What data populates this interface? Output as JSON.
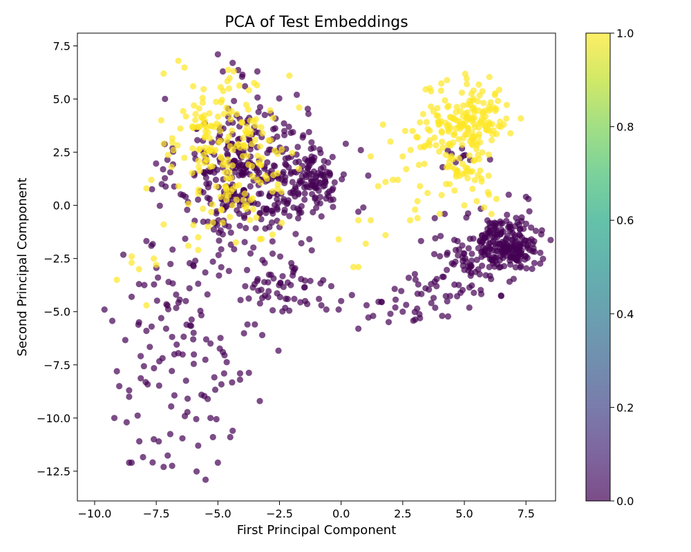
{
  "chart_data": {
    "type": "scatter",
    "title": "PCA of Test Embeddings",
    "xlabel": "First Principal Component",
    "ylabel": "Second Principal Component",
    "xlim": [
      -10.7,
      8.7
    ],
    "ylim": [
      -13.9,
      8.1
    ],
    "xticks": [
      -10.0,
      -7.5,
      -5.0,
      -2.5,
      0.0,
      2.5,
      5.0,
      7.5
    ],
    "yticks": [
      -12.5,
      -10.0,
      -7.5,
      -5.0,
      -2.5,
      0.0,
      2.5,
      5.0,
      7.5
    ],
    "xtick_labels": [
      "−10.0",
      "−7.5",
      "−5.0",
      "−2.5",
      "0.0",
      "2.5",
      "5.0",
      "7.5"
    ],
    "ytick_labels": [
      "−12.5",
      "−10.0",
      "−7.5",
      "−5.0",
      "−2.5",
      "0.0",
      "2.5",
      "5.0",
      "7.5"
    ],
    "grid": false,
    "marker_alpha": 0.7,
    "colorbar": {
      "colormap": "viridis",
      "range": [
        0.0,
        1.0
      ],
      "ticks": [
        0.0,
        0.2,
        0.4,
        0.6,
        0.8,
        1.0
      ],
      "tick_labels": [
        "0.0",
        "0.2",
        "0.4",
        "0.6",
        "0.8",
        "1.0"
      ]
    },
    "colors": {
      "class_0": "#440154",
      "class_1": "#fde725"
    },
    "series": [
      {
        "value": 0,
        "clusters": [
          {
            "center": [
              -4.0,
              1.5
            ],
            "spread": [
              1.3,
              1.8
            ],
            "count": 330
          },
          {
            "center": [
              -1.2,
              1.2
            ],
            "spread": [
              0.7,
              0.8
            ],
            "count": 120
          },
          {
            "center": [
              -2.5,
              -3.5
            ],
            "spread": [
              1.0,
              0.8
            ],
            "count": 60
          },
          {
            "center": [
              -6.5,
              -6.5
            ],
            "spread": [
              1.5,
              2.8
            ],
            "count": 95
          },
          {
            "center": [
              6.8,
              -1.8
            ],
            "spread": [
              0.6,
              0.6
            ],
            "count": 190
          },
          {
            "center": [
              5.3,
              -2.7
            ],
            "spread": [
              1.0,
              0.9
            ],
            "count": 90
          },
          {
            "center": [
              3.0,
              -4.3
            ],
            "spread": [
              1.0,
              0.6
            ],
            "count": 30
          },
          {
            "center": [
              5.0,
              2.2
            ],
            "spread": [
              0.4,
              0.3
            ],
            "count": 10
          }
        ],
        "points": [
          [
            -9.6,
            -4.9
          ],
          [
            -9.2,
            -10.0
          ],
          [
            -8.7,
            -10.2
          ],
          [
            -8.5,
            -12.1
          ],
          [
            -8.6,
            -12.1
          ],
          [
            -7.2,
            -12.3
          ],
          [
            -5.5,
            -12.9
          ],
          [
            -5.0,
            -12.1
          ],
          [
            -5.8,
            -11.3
          ],
          [
            -5.2,
            -10.9
          ],
          [
            -4.4,
            -10.6
          ],
          [
            -7.6,
            -11.0
          ],
          [
            -7.4,
            -11.1
          ],
          [
            -5.3,
            -10.0
          ],
          [
            -4.5,
            -10.9
          ],
          [
            -3.3,
            -9.2
          ],
          [
            -9.0,
            -8.5
          ],
          [
            -9.1,
            -7.8
          ],
          [
            -8.6,
            -9.0
          ],
          [
            -8.6,
            -8.7
          ],
          [
            -4.1,
            -8.2
          ],
          [
            -4.1,
            -7.9
          ],
          [
            -4.8,
            -6.9
          ],
          [
            -5.3,
            -6.5
          ],
          [
            -3.5,
            -5.6
          ],
          [
            -3.8,
            -5.6
          ],
          [
            -3.2,
            -6.1
          ],
          [
            -0.1,
            -4.9
          ],
          [
            -0.8,
            -4.7
          ],
          [
            0.7,
            -5.8
          ],
          [
            -1.9,
            -4.4
          ],
          [
            0.0,
            -4.5
          ],
          [
            -0.4,
            -3.8
          ],
          [
            6.8,
            0.5
          ],
          [
            7.5,
            0.4
          ],
          [
            7.6,
            0.3
          ],
          [
            7.9,
            -1.2
          ],
          [
            2.2,
            -4.8
          ],
          [
            2.5,
            -5.0
          ],
          [
            3.2,
            -5.3
          ],
          [
            4.1,
            -5.2
          ],
          [
            1.3,
            -5.2
          ],
          [
            3.8,
            -0.6
          ],
          [
            4.2,
            -0.4
          ],
          [
            2.0,
            -5.1
          ],
          [
            -7.7,
            -1.9
          ],
          [
            -8.5,
            -4.3
          ],
          [
            -8.2,
            -3.7
          ],
          [
            -7.0,
            -3.6
          ],
          [
            -7.9,
            -5.9
          ],
          [
            -8.2,
            -5.5
          ],
          [
            -6.3,
            -4.5
          ],
          [
            -6.0,
            -6.3
          ],
          [
            -7.3,
            -5.3
          ],
          [
            -7.1,
            -5.8
          ],
          [
            -5.0,
            7.1
          ],
          [
            -4.8,
            6.3
          ],
          [
            -4.4,
            6.7
          ],
          [
            -3.4,
            6.3
          ],
          [
            -3.9,
            5.6
          ],
          [
            -1.8,
            5.2
          ],
          [
            -2.3,
            3.3
          ],
          [
            1.1,
            1.4
          ],
          [
            0.9,
            -0.1
          ],
          [
            0.7,
            -0.3
          ],
          [
            0.8,
            2.6
          ],
          [
            -0.6,
            -4.9
          ],
          [
            -0.9,
            -4.4
          ]
        ]
      },
      {
        "value": 1,
        "clusters": [
          {
            "center": [
              -5.2,
              3.3
            ],
            "spread": [
              0.9,
              1.3
            ],
            "count": 100
          },
          {
            "center": [
              -3.8,
              2.5
            ],
            "spread": [
              1.0,
              1.5
            ],
            "count": 60
          },
          {
            "center": [
              -4.2,
              0.3
            ],
            "spread": [
              0.9,
              0.9
            ],
            "count": 40
          },
          {
            "center": [
              5.2,
              4.1
            ],
            "spread": [
              0.8,
              0.8
            ],
            "count": 150
          },
          {
            "center": [
              5.1,
              1.7
            ],
            "spread": [
              0.6,
              0.6
            ],
            "count": 40
          },
          {
            "center": [
              3.8,
              3.0
            ],
            "spread": [
              0.6,
              0.8
            ],
            "count": 25
          }
        ],
        "points": [
          [
            -9.1,
            -3.5
          ],
          [
            -8.5,
            -2.4
          ],
          [
            -8.5,
            -2.7
          ],
          [
            -8.2,
            -3.0
          ],
          [
            -7.9,
            -4.7
          ],
          [
            -7.6,
            -2.5
          ],
          [
            -7.5,
            -2.8
          ],
          [
            -7.9,
            0.8
          ],
          [
            -7.7,
            1.2
          ],
          [
            -7.3,
            4.0
          ],
          [
            -7.2,
            6.2
          ],
          [
            -6.6,
            6.8
          ],
          [
            -6.0,
            5.6
          ],
          [
            -2.1,
            6.1
          ],
          [
            -1.7,
            4.6
          ],
          [
            0.5,
            -2.9
          ],
          [
            0.7,
            -2.9
          ],
          [
            1.0,
            -1.8
          ],
          [
            0.7,
            -0.7
          ],
          [
            1.2,
            -0.7
          ],
          [
            1.2,
            2.3
          ],
          [
            1.5,
            0.9
          ],
          [
            1.8,
            1.1
          ],
          [
            1.7,
            3.8
          ],
          [
            2.0,
            3.0
          ],
          [
            2.1,
            1.2
          ],
          [
            2.3,
            1.2
          ],
          [
            2.5,
            2.3
          ],
          [
            2.6,
            3.5
          ],
          [
            2.8,
            -0.7
          ],
          [
            3.0,
            -0.2
          ],
          [
            3.1,
            0.2
          ],
          [
            3.2,
            0.9
          ],
          [
            3.1,
            -0.6
          ],
          [
            2.9,
            3.5
          ],
          [
            3.2,
            3.9
          ],
          [
            3.4,
            2.8
          ],
          [
            1.8,
            -1.4
          ],
          [
            -0.1,
            -1.6
          ],
          [
            -6.8,
            2.6
          ],
          [
            -7.2,
            2.9
          ],
          [
            -6.6,
            0.9
          ],
          [
            6.0,
            0.5
          ],
          [
            6.1,
            -0.4
          ],
          [
            6.3,
            0.3
          ],
          [
            5.5,
            0.2
          ],
          [
            5.0,
            0.0
          ],
          [
            5.8,
            -0.1
          ],
          [
            4.6,
            0.7
          ],
          [
            4.4,
            1.0
          ],
          [
            4.0,
            -0.4
          ],
          [
            6.6,
            3.8
          ],
          [
            6.0,
            3.9
          ],
          [
            -5.4,
            -1.0
          ],
          [
            -5.8,
            -1.5
          ],
          [
            -6.2,
            -1.9
          ],
          [
            -7.2,
            -0.9
          ],
          [
            -5.8,
            -2.1
          ]
        ]
      }
    ]
  }
}
